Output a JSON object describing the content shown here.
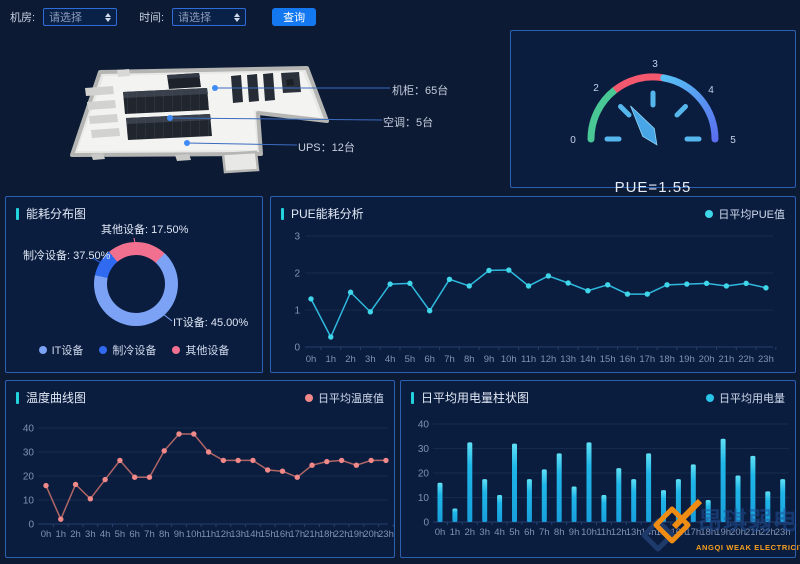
{
  "filters": {
    "room_label": "机房:",
    "room_value": "请选择",
    "time_label": "时间:",
    "time_value": "请选择",
    "search_button": "查询"
  },
  "scene": {
    "callouts": [
      {
        "text": "机柜：65台"
      },
      {
        "text": "空调：5台"
      },
      {
        "text": "UPS：12台"
      }
    ]
  },
  "gauge": {
    "value": 1.55,
    "value_text": "PUE=1.55",
    "min": 0,
    "max": 5,
    "axis_labels": [
      "0",
      "2",
      "3",
      "4",
      "5"
    ],
    "arc_colors": {
      "low": "#49c795",
      "mid": "#f4586e",
      "high_start": "#58c0f4",
      "high_end": "#5a6af0"
    }
  },
  "chart_data": [
    {
      "type": "pie",
      "title": "能耗分布图",
      "slices": [
        {
          "name": "IT设备",
          "value": 45.0,
          "color": "#7ba2f4",
          "label": "IT设备: 45.00%"
        },
        {
          "name": "制冷设备",
          "value": 37.5,
          "color": "#2f6af0",
          "label": "制冷设备: 37.50%"
        },
        {
          "name": "其他设备",
          "value": 17.5,
          "color": "#f2708f",
          "label": "其他设备: 17.50%"
        }
      ],
      "legend": [
        "IT设备",
        "制冷设备",
        "其他设备"
      ],
      "conic": {
        "from": 282,
        "segments": [
          {
            "color": "#2f6af0",
            "to": 38
          },
          {
            "color": "#f2708f",
            "to": 121
          },
          {
            "color": "#7ba2f4",
            "to": 360
          }
        ]
      }
    },
    {
      "type": "line",
      "title": "PUE能耗分析",
      "legend": "日平均PUE值",
      "color": "#2fb9de",
      "dot_color": "#3fd6ea",
      "categories": [
        "0h",
        "1h",
        "2h",
        "3h",
        "4h",
        "5h",
        "6h",
        "7h",
        "8h",
        "9h",
        "10h",
        "11h",
        "12h",
        "13h",
        "14h",
        "15h",
        "16h",
        "17h",
        "18h",
        "19h",
        "20h",
        "21h",
        "22h",
        "23h"
      ],
      "values": [
        1.3,
        0.27,
        1.48,
        0.95,
        1.7,
        1.72,
        0.98,
        1.83,
        1.65,
        2.07,
        2.08,
        1.65,
        1.92,
        1.73,
        1.52,
        1.68,
        1.43,
        1.43,
        1.68,
        1.7,
        1.72,
        1.65,
        1.72,
        1.6
      ],
      "ylim": [
        0,
        3
      ],
      "yticks": [
        0,
        1,
        2,
        3
      ]
    },
    {
      "type": "line",
      "title": "温度曲线图",
      "legend": "日平均温度值",
      "color": "#b06565",
      "dot_color": "#f18989",
      "categories": [
        "0h",
        "1h",
        "2h",
        "3h",
        "4h",
        "5h",
        "6h",
        "7h",
        "8h",
        "9h",
        "10h",
        "11h",
        "12h",
        "13h",
        "14h",
        "15h",
        "16h",
        "17h",
        "21h",
        "18h",
        "22h",
        "19h",
        "20h",
        "23h"
      ],
      "values": [
        16,
        2,
        16.5,
        10.5,
        18.5,
        26.5,
        19.5,
        19.5,
        30.5,
        37.5,
        37.5,
        30,
        26.5,
        26.5,
        26.5,
        22.5,
        22,
        19.5,
        24.5,
        26,
        26.5,
        24.5,
        26.5,
        26.5
      ],
      "ylim": [
        0,
        40
      ],
      "yticks": [
        0,
        10,
        20,
        30,
        40
      ]
    },
    {
      "type": "bar",
      "title": "日平均用电量柱状图",
      "legend": "日平均用电量",
      "color": "#29c5e8",
      "categories": [
        "0h",
        "1h",
        "2h",
        "3h",
        "4h",
        "5h",
        "6h",
        "7h",
        "8h",
        "9h",
        "10h",
        "11h",
        "12h",
        "13h",
        "14h",
        "15h",
        "16h",
        "17h",
        "18h",
        "19h",
        "20h",
        "21h",
        "22h",
        "23h"
      ],
      "values": [
        16,
        5.5,
        32.5,
        17.5,
        11,
        32,
        17.5,
        21.5,
        28,
        14.5,
        32.5,
        11,
        22,
        17.5,
        28,
        13,
        17.5,
        23.5,
        9,
        34,
        19,
        27,
        12.5,
        17.5
      ],
      "ylim": [
        0,
        40
      ],
      "yticks": [
        0,
        10,
        20,
        30,
        40
      ]
    }
  ],
  "watermark": {
    "ghost": "昂琪弱电",
    "text": "ANGQI WEAK ELECTRICITY"
  }
}
